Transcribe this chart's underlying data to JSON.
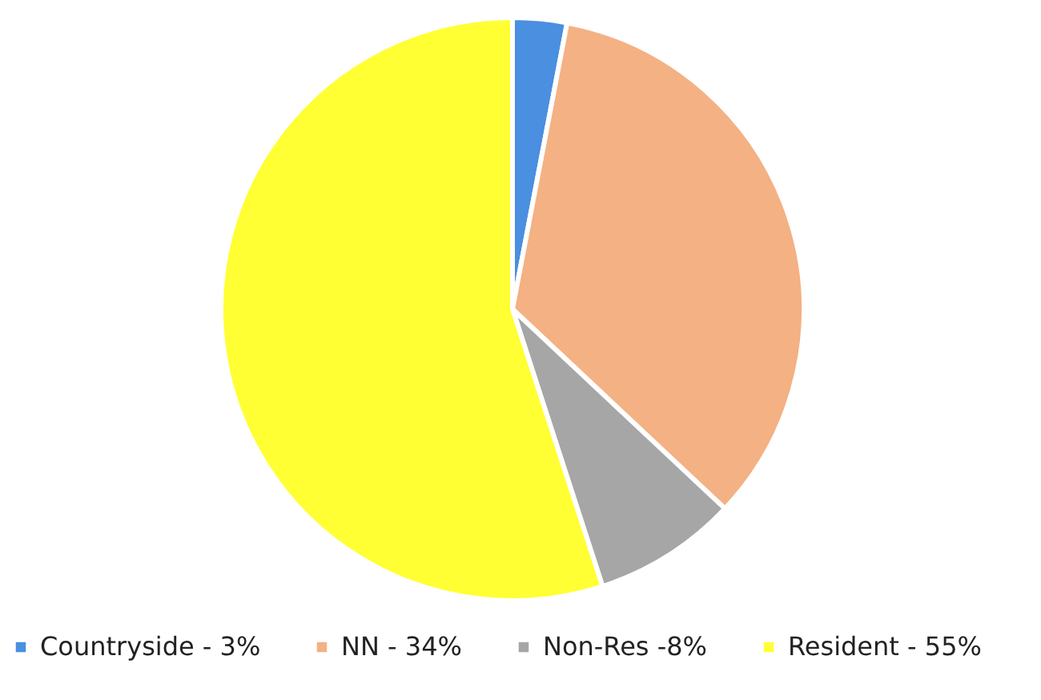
{
  "chart_data": {
    "type": "pie",
    "categories": [
      "Countryside - 3%",
      "NN - 34%",
      "Non-Res -8%",
      "Resident - 55%"
    ],
    "values": [
      3,
      34,
      8,
      55
    ],
    "colors": [
      "#4a8fe0",
      "#f4b183",
      "#a6a6a6",
      "#ffff33"
    ],
    "legend": "bottom"
  }
}
